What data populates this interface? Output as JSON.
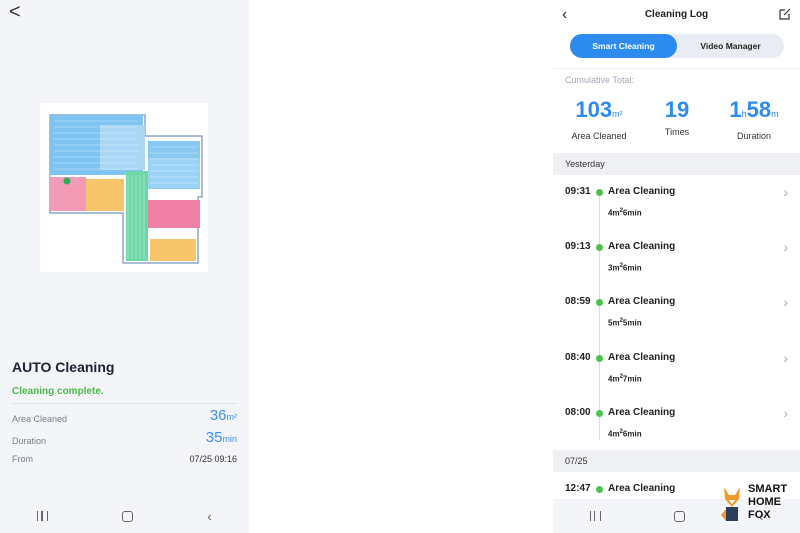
{
  "left": {
    "back_glyph": "<",
    "title": "AUTO Cleaning",
    "status": "Cleaning complete.",
    "rows": [
      {
        "label": "Area Cleaned",
        "value": "36",
        "unit": "m²"
      },
      {
        "label": "Duration",
        "value": "35",
        "unit": "min"
      },
      {
        "label": "From",
        "value": "07/25 09:16"
      }
    ]
  },
  "right": {
    "title": "Cleaning Log",
    "tabs": [
      {
        "label": "Smart Cleaning",
        "active": true
      },
      {
        "label": "Video Manager",
        "active": false
      }
    ],
    "cumulative_label": "Cumulative Total:",
    "stats": [
      {
        "value": "103",
        "unit": "m²",
        "caption": "Area Cleaned"
      },
      {
        "value": "19",
        "unit": "",
        "caption": "Times"
      },
      {
        "value": "1",
        "unit": "h",
        "value2": "58",
        "unit2": "m",
        "caption": "Duration"
      }
    ],
    "sections": [
      {
        "label": "Yesterday",
        "items": [
          {
            "time": "09:31",
            "name": "Area Cleaning",
            "area": "4m",
            "dur": "6min"
          },
          {
            "time": "09:13",
            "name": "Area Cleaning",
            "area": "3m",
            "dur": "6min"
          },
          {
            "time": "08:59",
            "name": "Area Cleaning",
            "area": "5m",
            "dur": "5min"
          },
          {
            "time": "08:40",
            "name": "Area Cleaning",
            "area": "4m",
            "dur": "7min"
          },
          {
            "time": "08:00",
            "name": "Area Cleaning",
            "area": "4m",
            "dur": "6min"
          }
        ]
      },
      {
        "label": "07/25",
        "items": [
          {
            "time": "12:47",
            "name": "Area Cleaning"
          }
        ]
      }
    ]
  },
  "watermark": {
    "line1": "SMART",
    "line2": "HOME",
    "line3": "FOX"
  },
  "colors": {
    "accent": "#2d8bf0",
    "status_green": "#4ab84b",
    "dot_green": "#4cc24d"
  }
}
